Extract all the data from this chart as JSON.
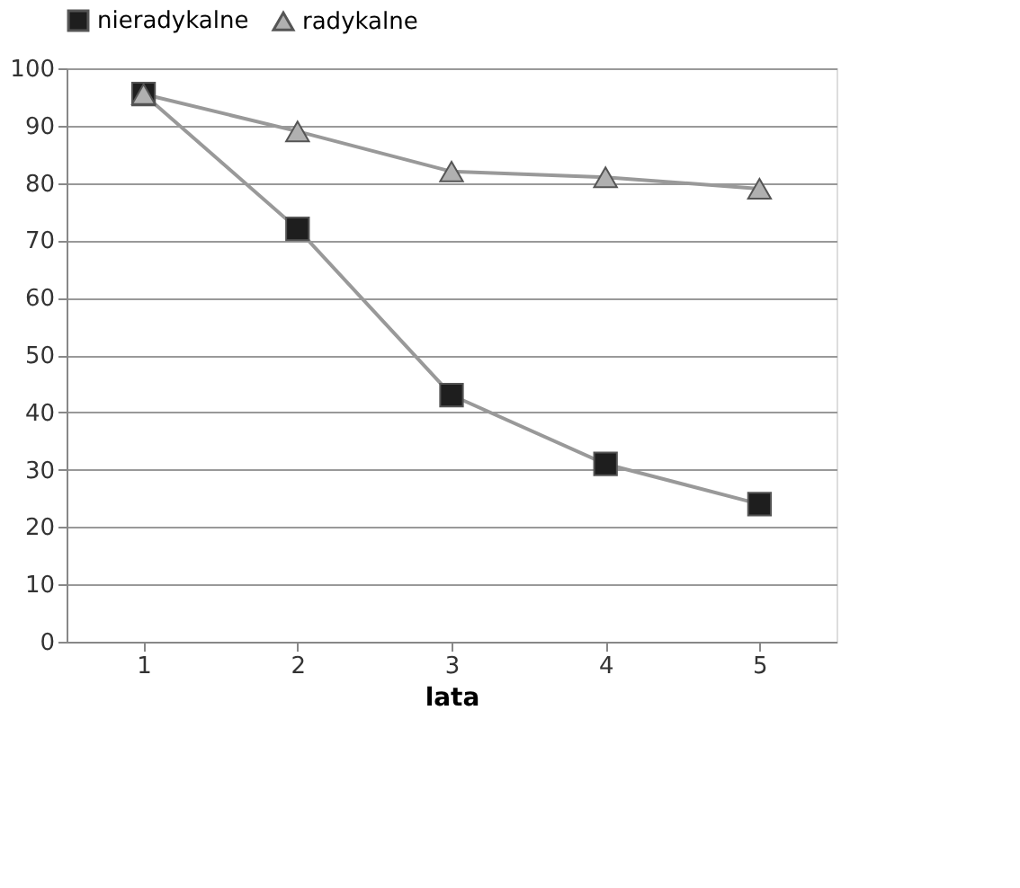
{
  "chart_data": {
    "type": "line",
    "xlabel": "lata",
    "categories": [
      "1",
      "2",
      "3",
      "4",
      "5"
    ],
    "series": [
      {
        "name": "nieradykalne",
        "color": "#1e1e1e",
        "marker": "square",
        "values": [
          95.5,
          72,
          43,
          31,
          24
        ]
      },
      {
        "name": "radykalne",
        "color": "#b0b0b0",
        "marker": "triangle",
        "values": [
          95.5,
          89,
          82,
          81,
          79
        ]
      }
    ],
    "ylim": [
      0,
      100
    ],
    "yticks": [
      0,
      10,
      20,
      30,
      40,
      50,
      60,
      70,
      80,
      90,
      100
    ],
    "grid": "y",
    "legend": "top",
    "line_style": "solid"
  }
}
